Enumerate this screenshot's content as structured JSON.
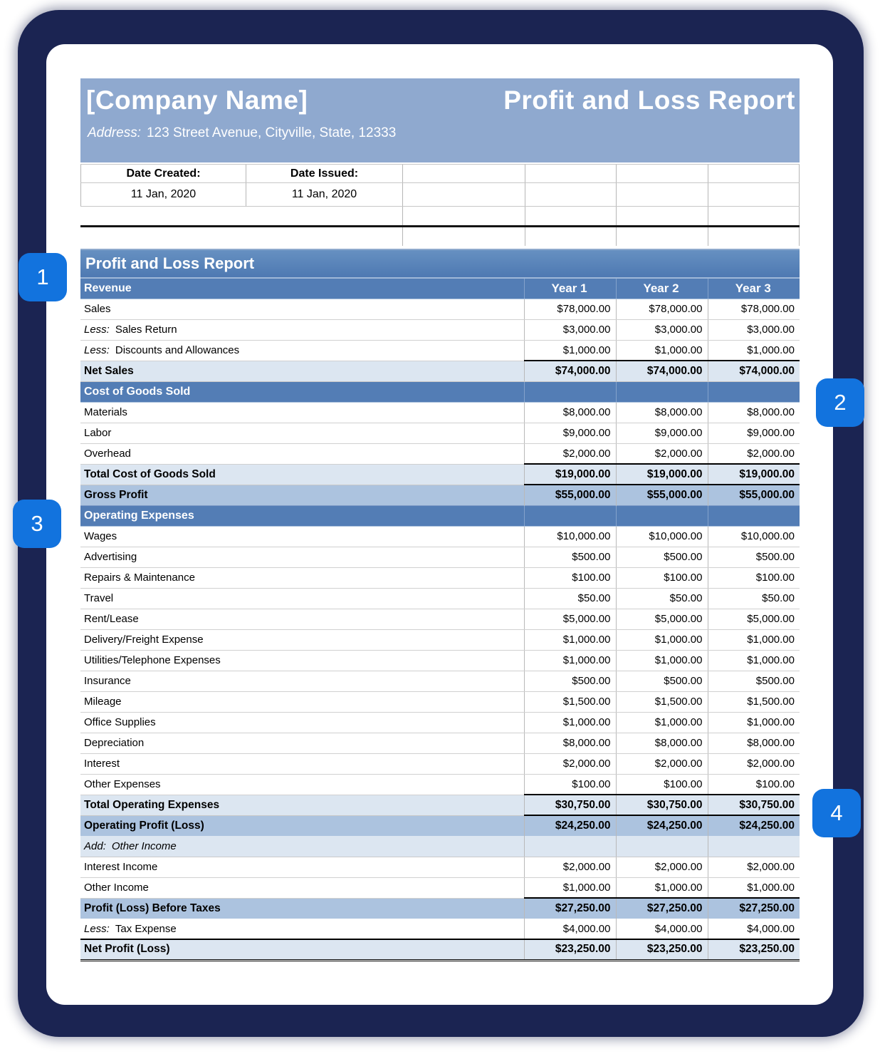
{
  "colors": {
    "backdrop": "#1B2452",
    "badge": "#1273DE",
    "band": "#8FA9CF",
    "section": "#537DB5",
    "total_bg": "#DCE6F1",
    "subtotal_bg": "#ACC3DF"
  },
  "badges": [
    {
      "label": "1"
    },
    {
      "label": "2"
    },
    {
      "label": "3"
    },
    {
      "label": "4"
    }
  ],
  "header": {
    "company": "[Company Name]",
    "report_title": "Profit and Loss Report",
    "address_label": "Address:",
    "address": "123 Street Avenue, Cityville, State, 12333"
  },
  "meta": {
    "date_created_label": "Date Created:",
    "date_created": "11 Jan, 2020",
    "date_issued_label": "Date Issued:",
    "date_issued": "11 Jan, 2020"
  },
  "table": {
    "title": "Profit and Loss Report",
    "columns": [
      "Year 1",
      "Year 2",
      "Year 3"
    ],
    "rows": [
      {
        "type": "section",
        "label": "Revenue",
        "year_headers": true
      },
      {
        "type": "data",
        "label": "Sales",
        "values": [
          "$78,000.00",
          "$78,000.00",
          "$78,000.00"
        ]
      },
      {
        "type": "data",
        "prefix": "Less:",
        "label": "Sales Return",
        "values": [
          "$3,000.00",
          "$3,000.00",
          "$3,000.00"
        ]
      },
      {
        "type": "data",
        "prefix": "Less:",
        "label": "Discounts and Allowances",
        "values": [
          "$1,000.00",
          "$1,000.00",
          "$1,000.00"
        ]
      },
      {
        "type": "total",
        "label": "Net Sales",
        "values": [
          "$74,000.00",
          "$74,000.00",
          "$74,000.00"
        ],
        "borders": {
          "top": "values"
        }
      },
      {
        "type": "section",
        "label": "Cost of Goods Sold"
      },
      {
        "type": "data",
        "label": "Materials",
        "values": [
          "$8,000.00",
          "$8,000.00",
          "$8,000.00"
        ]
      },
      {
        "type": "data",
        "label": "Labor",
        "values": [
          "$9,000.00",
          "$9,000.00",
          "$9,000.00"
        ]
      },
      {
        "type": "data",
        "label": "Overhead",
        "values": [
          "$2,000.00",
          "$2,000.00",
          "$2,000.00"
        ]
      },
      {
        "type": "total",
        "label": "Total Cost of Goods Sold",
        "values": [
          "$19,000.00",
          "$19,000.00",
          "$19,000.00"
        ],
        "borders": {
          "top": "values",
          "bottom": "values"
        }
      },
      {
        "type": "subtotal",
        "label": "Gross Profit",
        "values": [
          "$55,000.00",
          "$55,000.00",
          "$55,000.00"
        ]
      },
      {
        "type": "section",
        "label": "Operating Expenses"
      },
      {
        "type": "data",
        "label": "Wages",
        "values": [
          "$10,000.00",
          "$10,000.00",
          "$10,000.00"
        ]
      },
      {
        "type": "data",
        "label": "Advertising",
        "values": [
          "$500.00",
          "$500.00",
          "$500.00"
        ]
      },
      {
        "type": "data",
        "label": "Repairs & Maintenance",
        "values": [
          "$100.00",
          "$100.00",
          "$100.00"
        ]
      },
      {
        "type": "data",
        "label": "Travel",
        "values": [
          "$50.00",
          "$50.00",
          "$50.00"
        ]
      },
      {
        "type": "data",
        "label": "Rent/Lease",
        "values": [
          "$5,000.00",
          "$5,000.00",
          "$5,000.00"
        ]
      },
      {
        "type": "data",
        "label": "Delivery/Freight Expense",
        "values": [
          "$1,000.00",
          "$1,000.00",
          "$1,000.00"
        ]
      },
      {
        "type": "data",
        "label": "Utilities/Telephone Expenses",
        "values": [
          "$1,000.00",
          "$1,000.00",
          "$1,000.00"
        ]
      },
      {
        "type": "data",
        "label": "Insurance",
        "values": [
          "$500.00",
          "$500.00",
          "$500.00"
        ]
      },
      {
        "type": "data",
        "label": "Mileage",
        "values": [
          "$1,500.00",
          "$1,500.00",
          "$1,500.00"
        ]
      },
      {
        "type": "data",
        "label": "Office Supplies",
        "values": [
          "$1,000.00",
          "$1,000.00",
          "$1,000.00"
        ]
      },
      {
        "type": "data",
        "label": "Depreciation",
        "values": [
          "$8,000.00",
          "$8,000.00",
          "$8,000.00"
        ]
      },
      {
        "type": "data",
        "label": "Interest",
        "values": [
          "$2,000.00",
          "$2,000.00",
          "$2,000.00"
        ]
      },
      {
        "type": "data",
        "label": "Other Expenses",
        "values": [
          "$100.00",
          "$100.00",
          "$100.00"
        ]
      },
      {
        "type": "total",
        "label": "Total Operating Expenses",
        "values": [
          "$30,750.00",
          "$30,750.00",
          "$30,750.00"
        ],
        "borders": {
          "top": "values",
          "bottom": "values"
        }
      },
      {
        "type": "subtotal",
        "label": "Operating Profit (Loss)",
        "values": [
          "$24,250.00",
          "$24,250.00",
          "$24,250.00"
        ]
      },
      {
        "type": "note",
        "prefix": "Add:",
        "label": "Other Income"
      },
      {
        "type": "data",
        "label": "Interest Income",
        "values": [
          "$2,000.00",
          "$2,000.00",
          "$2,000.00"
        ]
      },
      {
        "type": "data",
        "label": "Other Income",
        "values": [
          "$1,000.00",
          "$1,000.00",
          "$1,000.00"
        ]
      },
      {
        "type": "subtotal",
        "label": "Profit (Loss) Before Taxes",
        "values": [
          "$27,250.00",
          "$27,250.00",
          "$27,250.00"
        ],
        "borders": {
          "top": "values"
        }
      },
      {
        "type": "data",
        "prefix": "Less:",
        "label": "Tax Expense",
        "values": [
          "$4,000.00",
          "$4,000.00",
          "$4,000.00"
        ]
      },
      {
        "type": "total",
        "label": "Net Profit (Loss)",
        "values": [
          "$23,250.00",
          "$23,250.00",
          "$23,250.00"
        ],
        "borders": {
          "top": "full",
          "bottom": "double"
        }
      }
    ]
  }
}
